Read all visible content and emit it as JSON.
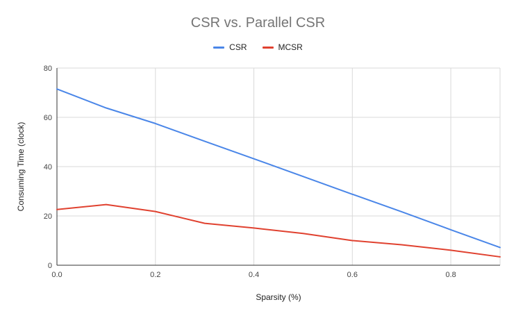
{
  "chart_data": {
    "type": "line",
    "title": "CSR vs. Parallel CSR",
    "xlabel": "Sparsity (%)",
    "ylabel": "Consuming Time (clock)",
    "xlim": [
      0,
      0.9
    ],
    "ylim": [
      0,
      80
    ],
    "x_ticks": [
      "0.0",
      "0.2",
      "0.4",
      "0.6",
      "0.8"
    ],
    "y_ticks": [
      "0",
      "20",
      "40",
      "60",
      "80"
    ],
    "grid": true,
    "legend_position": "top-center",
    "x": [
      0,
      0.1,
      0.2,
      0.3,
      0.4,
      0.5,
      0.6,
      0.7,
      0.8,
      0.9
    ],
    "series": [
      {
        "name": "CSR",
        "color": "#4a86e8",
        "values": [
          71.5,
          63.8,
          57.5,
          50.3,
          43.2,
          36.0,
          28.8,
          21.7,
          14.4,
          7.2
        ]
      },
      {
        "name": "MCSR",
        "color": "#e0412f",
        "values": [
          22.6,
          24.6,
          21.8,
          17.0,
          15.1,
          12.9,
          10.0,
          8.3,
          6.1,
          3.4
        ]
      }
    ]
  }
}
